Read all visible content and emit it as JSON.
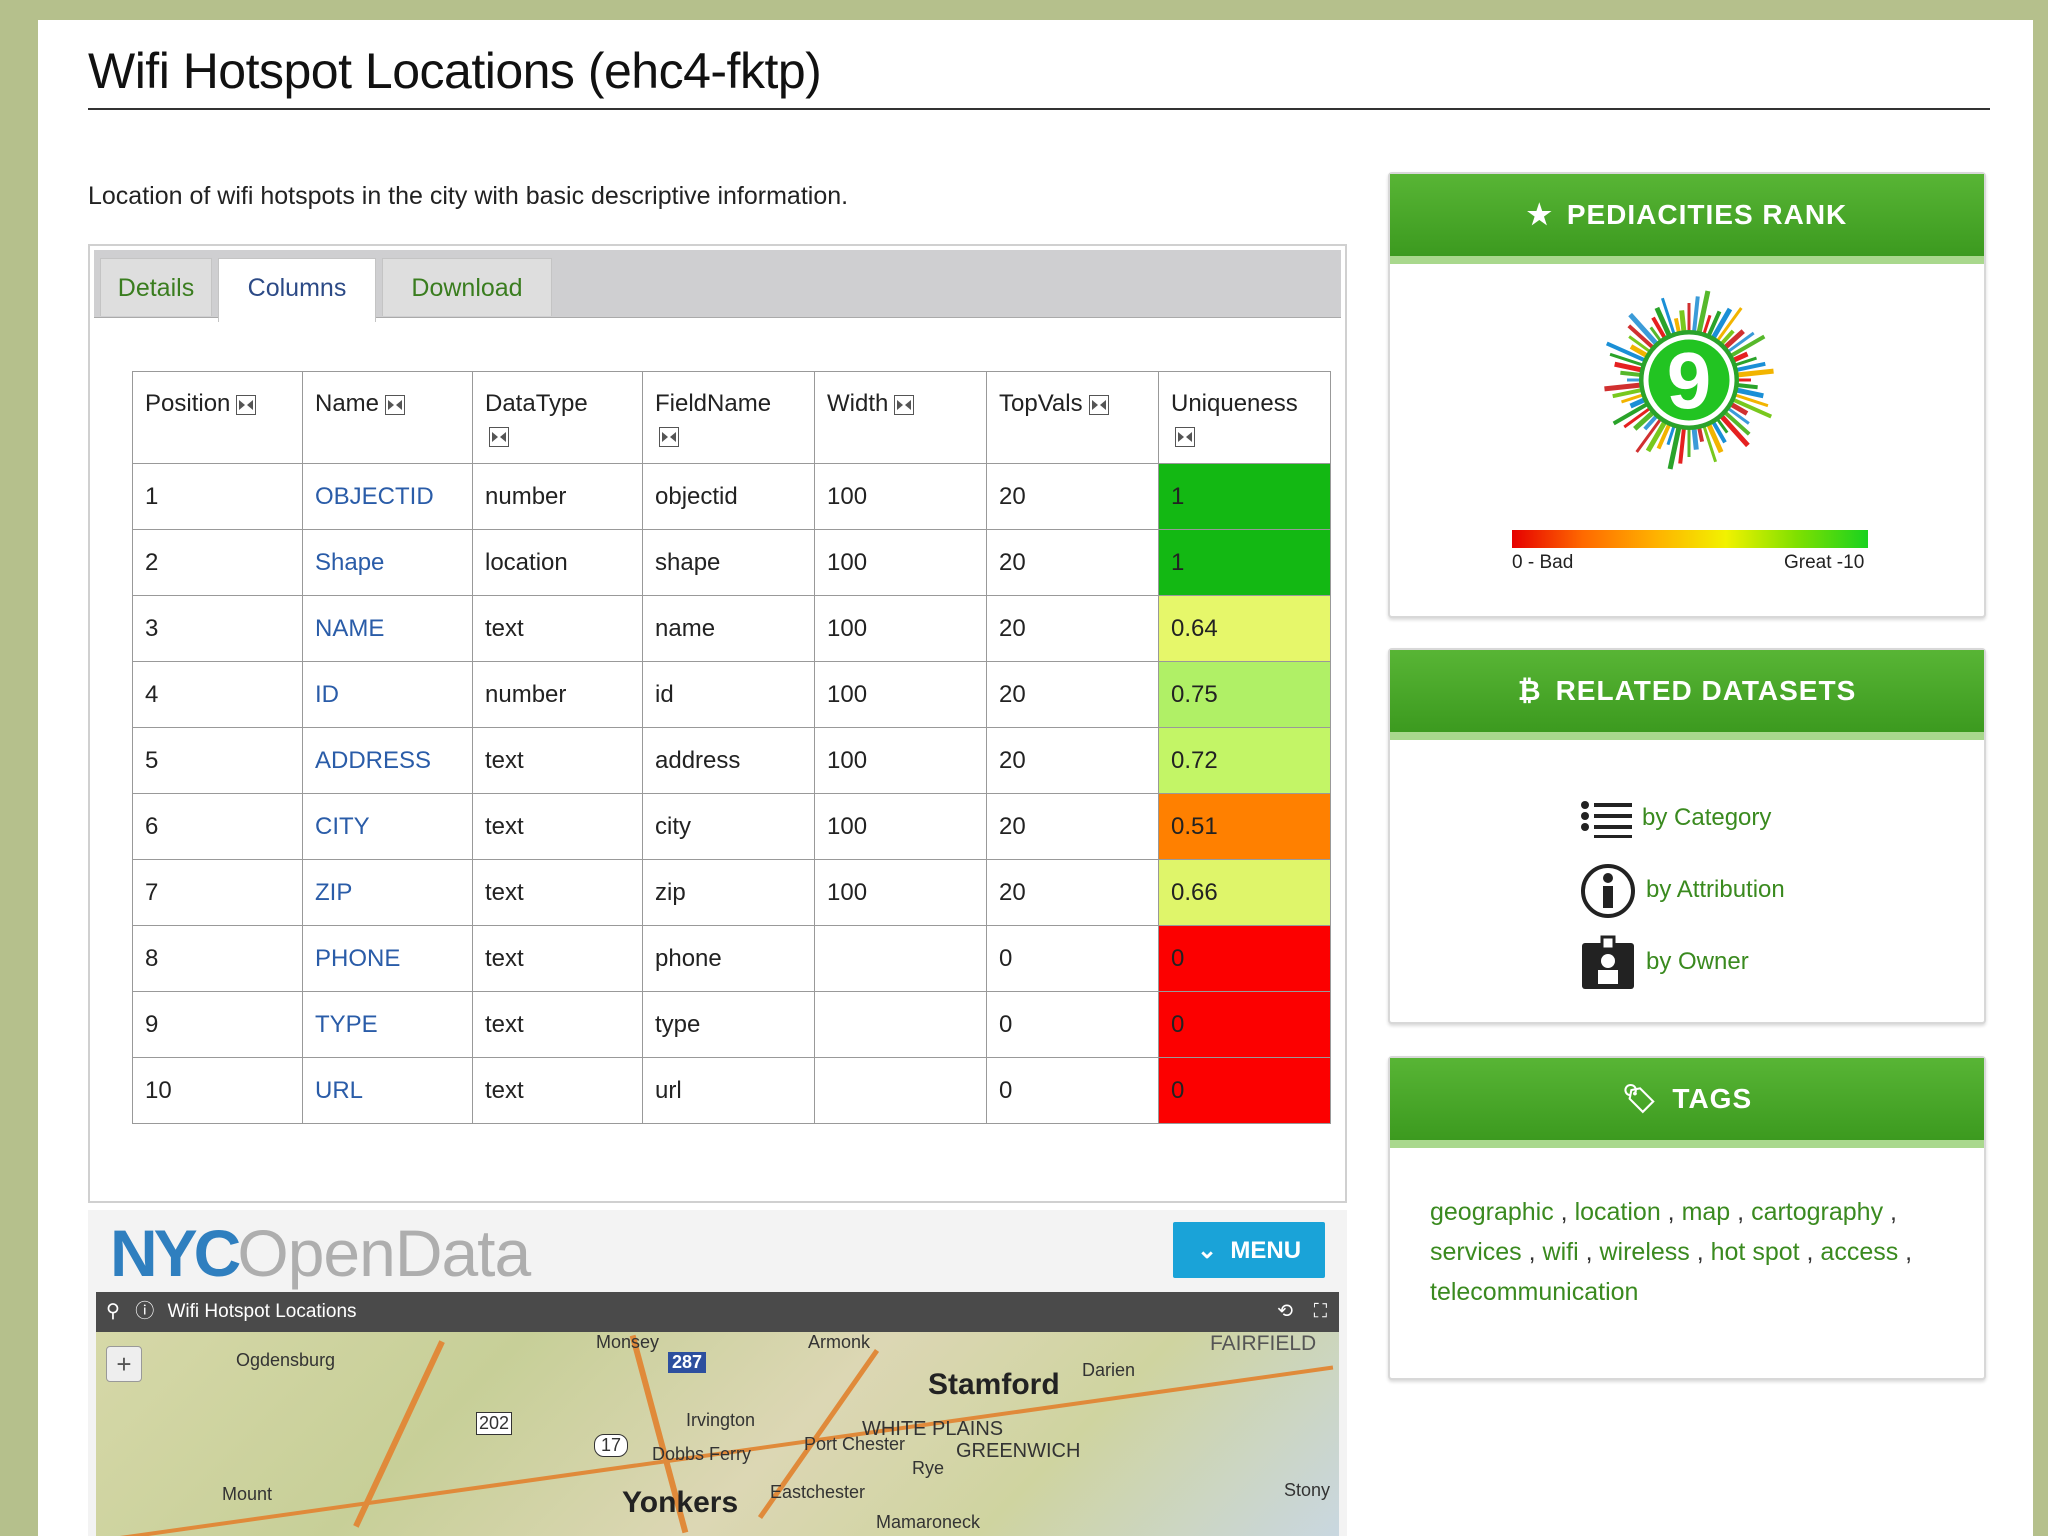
{
  "title": "Wifi Hotspot Locations (ehc4-fktp)",
  "description": "Location of wifi hotspots in the city with basic descriptive information.",
  "tabs": [
    {
      "label": "Details",
      "active": false
    },
    {
      "label": "Columns",
      "active": true
    },
    {
      "label": "Download",
      "active": false
    }
  ],
  "table": {
    "headers": [
      "Position",
      "Name",
      "DataType",
      "FieldName",
      "Width",
      "TopVals",
      "Uniqueness"
    ],
    "rows": [
      {
        "position": "1",
        "name": "OBJECTID",
        "datatype": "number",
        "fieldname": "objectid",
        "width": "100",
        "topvals": "20",
        "uniqueness": "1",
        "color": "#13b813"
      },
      {
        "position": "2",
        "name": "Shape",
        "datatype": "location",
        "fieldname": "shape",
        "width": "100",
        "topvals": "20",
        "uniqueness": "1",
        "color": "#13b813"
      },
      {
        "position": "3",
        "name": "NAME",
        "datatype": "text",
        "fieldname": "name",
        "width": "100",
        "topvals": "20",
        "uniqueness": "0.64",
        "color": "#e6f76a"
      },
      {
        "position": "4",
        "name": "ID",
        "datatype": "number",
        "fieldname": "id",
        "width": "100",
        "topvals": "20",
        "uniqueness": "0.75",
        "color": "#b0f066"
      },
      {
        "position": "5",
        "name": "ADDRESS",
        "datatype": "text",
        "fieldname": "address",
        "width": "100",
        "topvals": "20",
        "uniqueness": "0.72",
        "color": "#c3f566"
      },
      {
        "position": "6",
        "name": "CITY",
        "datatype": "text",
        "fieldname": "city",
        "width": "100",
        "topvals": "20",
        "uniqueness": "0.51",
        "color": "#ff8000"
      },
      {
        "position": "7",
        "name": "ZIP",
        "datatype": "text",
        "fieldname": "zip",
        "width": "100",
        "topvals": "20",
        "uniqueness": "0.66",
        "color": "#dff56a"
      },
      {
        "position": "8",
        "name": "PHONE",
        "datatype": "text",
        "fieldname": "phone",
        "width": "",
        "topvals": "0",
        "uniqueness": "0",
        "color": "#fc0000"
      },
      {
        "position": "9",
        "name": "TYPE",
        "datatype": "text",
        "fieldname": "type",
        "width": "",
        "topvals": "0",
        "uniqueness": "0",
        "color": "#fc0000"
      },
      {
        "position": "10",
        "name": "URL",
        "datatype": "text",
        "fieldname": "url",
        "width": "",
        "topvals": "0",
        "uniqueness": "0",
        "color": "#fc0000"
      }
    ]
  },
  "map_embed": {
    "logo_nyc": "NYC",
    "logo_opendata": "OpenData",
    "menu_label": "MENU",
    "toolbar_title": "Wifi Hotspot Locations",
    "labels": [
      "Ogdensburg",
      "Monsey",
      "Armonk",
      "Stamford",
      "Darien",
      "FAIRFIELD",
      "Irvington",
      "WHITE PLAINS",
      "Port Chester",
      "GREENWICH",
      "Rye",
      "Dobbs Ferry",
      "Yonkers",
      "Eastchester",
      "Mamaroneck",
      "Stony",
      "Mount",
      "202",
      "17",
      "287"
    ]
  },
  "rank_widget": {
    "header": "PEDIACITIES RANK",
    "rank": "9",
    "scale_min": "0 - Bad",
    "scale_max": "Great -10"
  },
  "related_widget": {
    "header": "RELATED DATASETS",
    "links": [
      "by Category",
      "by Attribution",
      "by Owner"
    ]
  },
  "tags_widget": {
    "header": "TAGS",
    "tags": [
      "geographic",
      "location",
      "map",
      "cartography",
      "services",
      "wifi",
      "wireless",
      "hot spot",
      "access",
      "telecommunication"
    ]
  },
  "colors": {
    "accent_green": "#3c9a1f",
    "link_blue": "#2a5ca8",
    "menu_blue": "#1aa3d8"
  },
  "icons": {
    "rank": "star-icon",
    "related": "signpost-icon",
    "tags": "tag-icon"
  }
}
